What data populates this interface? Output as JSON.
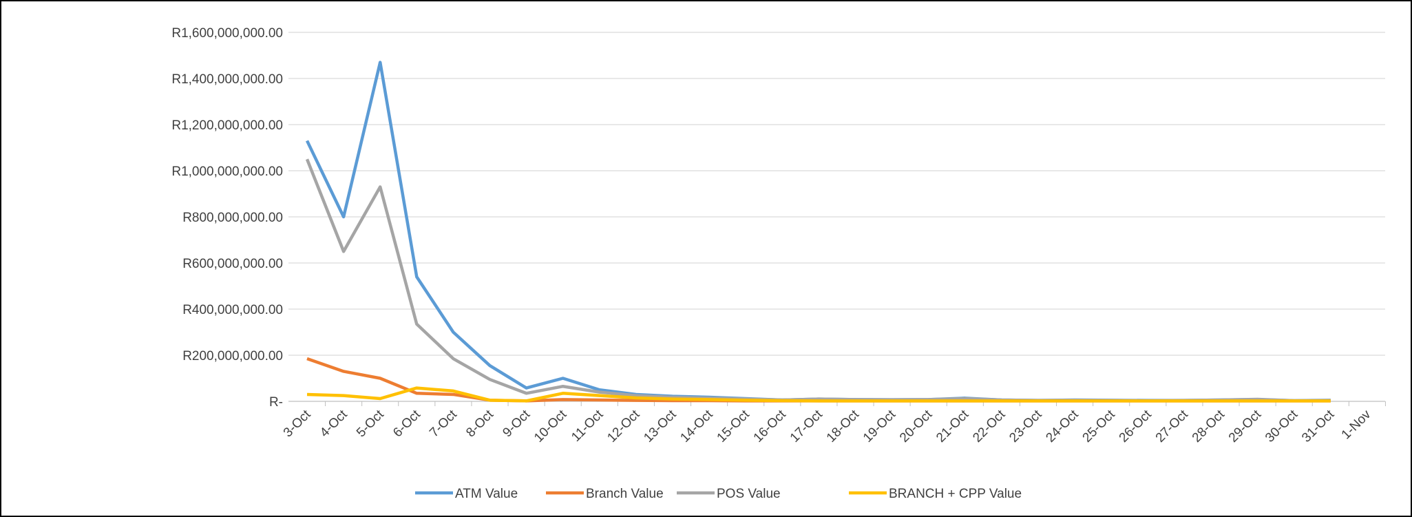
{
  "chart_data": {
    "type": "line",
    "categories": [
      "3-Oct",
      "4-Oct",
      "5-Oct",
      "6-Oct",
      "7-Oct",
      "8-Oct",
      "9-Oct",
      "10-Oct",
      "11-Oct",
      "12-Oct",
      "13-Oct",
      "14-Oct",
      "15-Oct",
      "16-Oct",
      "17-Oct",
      "18-Oct",
      "19-Oct",
      "20-Oct",
      "21-Oct",
      "22-Oct",
      "23-Oct",
      "24-Oct",
      "25-Oct",
      "26-Oct",
      "27-Oct",
      "28-Oct",
      "29-Oct",
      "30-Oct",
      "31-Oct",
      "1-Nov"
    ],
    "series": [
      {
        "name": "ATM Value",
        "color": "#5b9bd5",
        "values": [
          1130000000,
          800000000,
          1470000000,
          540000000,
          300000000,
          155000000,
          58000000,
          100000000,
          50000000,
          30000000,
          22000000,
          18000000,
          12000000,
          6000000,
          10000000,
          8000000,
          7000000,
          8000000,
          14000000,
          6000000,
          4000000,
          6000000,
          5000000,
          4000000,
          4000000,
          6000000,
          8000000,
          3000000,
          5000000,
          null
        ]
      },
      {
        "name": "Branch Value",
        "color": "#ed7d31",
        "values": [
          185000000,
          130000000,
          100000000,
          35000000,
          30000000,
          5000000,
          2000000,
          8000000,
          6000000,
          4000000,
          3000000,
          3000000,
          2000000,
          2000000,
          2000000,
          2000000,
          2000000,
          2000000,
          2000000,
          2000000,
          2000000,
          2000000,
          2000000,
          2000000,
          2000000,
          2000000,
          2000000,
          2000000,
          2000000,
          null
        ]
      },
      {
        "name": "POS Value",
        "color": "#a5a5a5",
        "values": [
          1050000000,
          650000000,
          930000000,
          335000000,
          185000000,
          95000000,
          35000000,
          65000000,
          40000000,
          25000000,
          18000000,
          14000000,
          10000000,
          6000000,
          10000000,
          8000000,
          7000000,
          8000000,
          12000000,
          6000000,
          4000000,
          5000000,
          4000000,
          3000000,
          4000000,
          6000000,
          9000000,
          3000000,
          4000000,
          null
        ]
      },
      {
        "name": "BRANCH + CPP Value",
        "color": "#ffc000",
        "values": [
          30000000,
          25000000,
          12000000,
          58000000,
          45000000,
          5000000,
          2000000,
          35000000,
          25000000,
          15000000,
          10000000,
          8000000,
          5000000,
          3000000,
          2000000,
          2000000,
          2000000,
          2000000,
          2000000,
          2000000,
          2000000,
          2000000,
          2000000,
          2000000,
          2000000,
          2000000,
          2000000,
          2000000,
          2000000,
          null
        ]
      }
    ],
    "ylim": [
      0,
      1600000000
    ],
    "yticks": [
      {
        "value": 0,
        "label": "R-"
      },
      {
        "value": 200000000,
        "label": "R200,000,000.00"
      },
      {
        "value": 400000000,
        "label": "R400,000,000.00"
      },
      {
        "value": 600000000,
        "label": "R600,000,000.00"
      },
      {
        "value": 800000000,
        "label": "R800,000,000.00"
      },
      {
        "value": 1000000000,
        "label": "R1,000,000,000.00"
      },
      {
        "value": 1200000000,
        "label": "R1,200,000,000.00"
      },
      {
        "value": 1400000000,
        "label": "R1,400,000,000.00"
      },
      {
        "value": 1600000000,
        "label": "R1,600,000,000.00"
      }
    ],
    "grid": true,
    "legend": "bottom"
  }
}
